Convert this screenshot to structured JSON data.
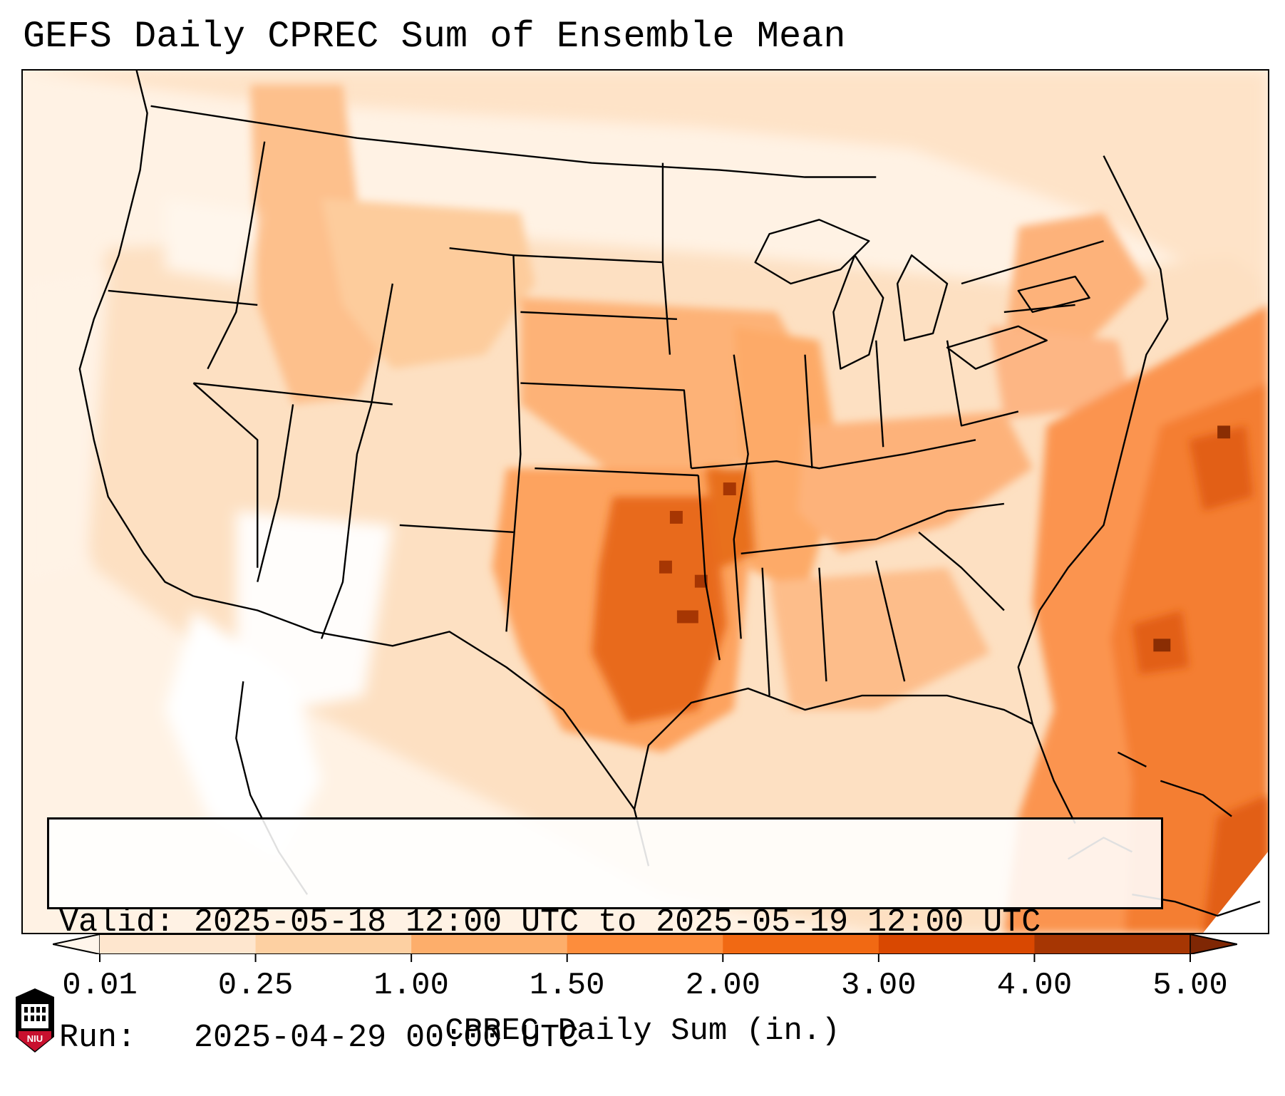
{
  "title": "GEFS Daily CPREC Sum of Ensemble Mean",
  "info": {
    "valid_line": "Valid: 2025-05-18 12:00 UTC to 2025-05-19 12:00 UTC",
    "run_line": "Run:   2025-04-29 00:00 UTC"
  },
  "colorbar": {
    "label": "CPREC Daily Sum (in.)",
    "ticks": [
      "0.01",
      "0.25",
      "1.00",
      "1.50",
      "2.00",
      "3.00",
      "4.00",
      "5.00"
    ],
    "colors": [
      "#fff5eb",
      "#fee6ce",
      "#fdd0a2",
      "#fdae6b",
      "#fd8d3c",
      "#f16913",
      "#d94801",
      "#a63603",
      "#7f2704"
    ],
    "extend": "both"
  },
  "logo": {
    "text": "NIU",
    "icon": "niu-logo-icon"
  },
  "map": {
    "projection": "lambert-conformal-conus",
    "field": "GEFS ensemble mean convective precipitation, 24 h sum"
  }
}
